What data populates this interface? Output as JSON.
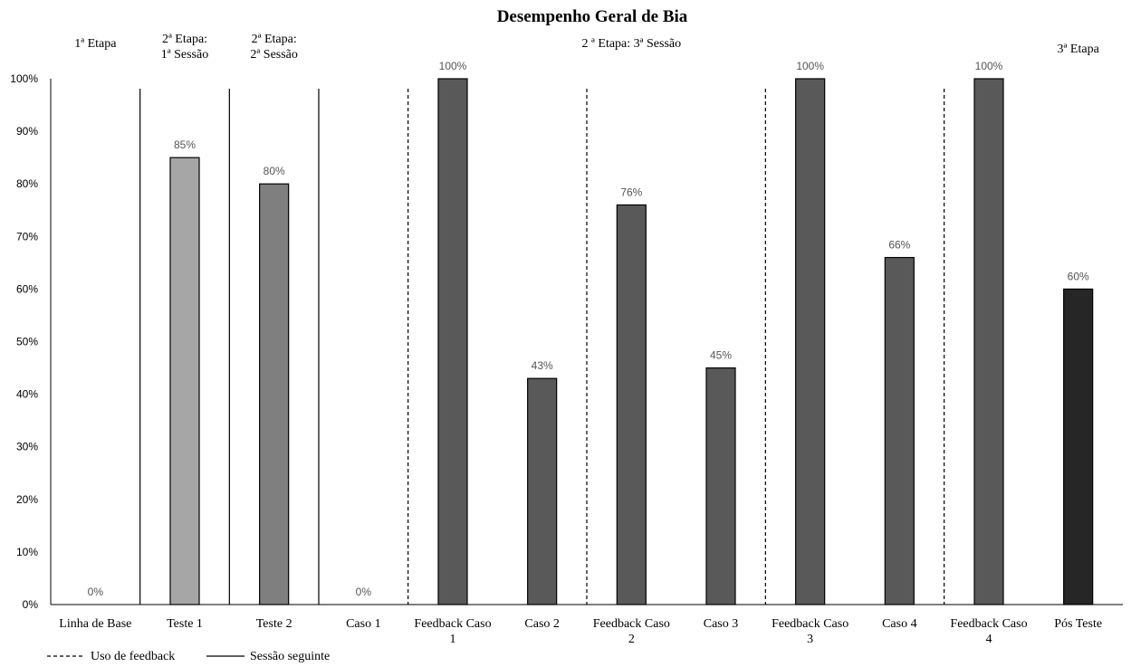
{
  "chart_data": {
    "type": "bar",
    "title": "Desempenho Geral de Bia",
    "categories": [
      [
        "Linha de Base"
      ],
      [
        "Teste 1"
      ],
      [
        "Teste 2"
      ],
      [
        "Caso 1"
      ],
      [
        "Feedback Caso",
        "1"
      ],
      [
        "Caso 2"
      ],
      [
        "Feedback Caso",
        "2"
      ],
      [
        "Caso 3"
      ],
      [
        "Feedback Caso",
        "3"
      ],
      [
        "Caso 4"
      ],
      [
        "Feedback Caso",
        "4"
      ],
      [
        "Pós Teste"
      ]
    ],
    "values": [
      0,
      85,
      80,
      0,
      100,
      43,
      76,
      45,
      100,
      66,
      100,
      60
    ],
    "data_labels": [
      "0%",
      "85%",
      "80%",
      "0%",
      "100%",
      "43%",
      "76%",
      "45%",
      "100%",
      "66%",
      "100%",
      "60%"
    ],
    "bar_colors": [
      "#ffffff",
      "#a6a6a6",
      "#7f7f7f",
      "#ffffff",
      "#595959",
      "#595959",
      "#595959",
      "#595959",
      "#595959",
      "#595959",
      "#595959",
      "#262626"
    ],
    "ylim": [
      0,
      100
    ],
    "y_ticks": [
      "0%",
      "10%",
      "20%",
      "30%",
      "40%",
      "50%",
      "60%",
      "70%",
      "80%",
      "90%",
      "100%"
    ],
    "xlabel": "",
    "ylabel": "",
    "grid": false,
    "stage_labels": [
      {
        "lines": [
          "1ª Etapa"
        ],
        "center_category": 0
      },
      {
        "lines": [
          "2ª Etapa:",
          "1ª Sessão"
        ],
        "center_category": 1
      },
      {
        "lines": [
          "2ª Etapa:",
          "2ª Sessão"
        ],
        "center_category": 2
      },
      {
        "lines": [
          "2 ª Etapa: 3ª Sessão"
        ],
        "center_category": 6
      },
      {
        "lines": [
          "3ª Etapa"
        ],
        "center_category": 11
      }
    ],
    "dividers": [
      {
        "after_category": 0,
        "style": "solid"
      },
      {
        "after_category": 1,
        "style": "solid"
      },
      {
        "after_category": 2,
        "style": "solid"
      },
      {
        "after_category": 3,
        "style": "dashed"
      },
      {
        "after_category": 5,
        "style": "dashed"
      },
      {
        "after_category": 7,
        "style": "dashed"
      },
      {
        "after_category": 9,
        "style": "dashed"
      }
    ],
    "legend": {
      "placement": "bottom-left",
      "items": [
        {
          "label": "Uso de feedback",
          "style": "dashed"
        },
        {
          "label": "Sessão seguinte",
          "style": "solid"
        }
      ]
    }
  }
}
